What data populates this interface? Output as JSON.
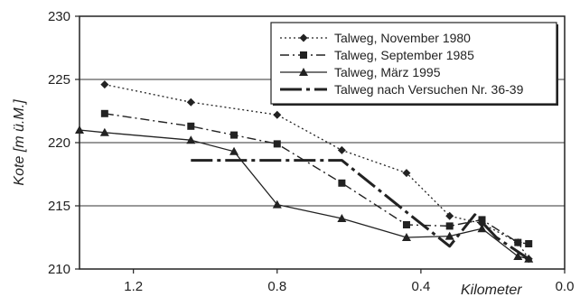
{
  "chart_data": {
    "type": "line",
    "xlabel": "Kilometer",
    "ylabel": "Kote [m ü.M.]",
    "xlim": [
      1.35,
      0.0
    ],
    "ylim": [
      210,
      230
    ],
    "x_ticks": [
      1.2,
      0.8,
      0.4,
      0.0
    ],
    "x_tick_labels": [
      "1.2",
      "0.8",
      "0.4",
      "0.0"
    ],
    "y_ticks": [
      210,
      215,
      220,
      225,
      230
    ],
    "y_tick_labels": [
      "210",
      "215",
      "220",
      "225",
      "230"
    ],
    "grid": "horizontal",
    "legend_position": "top-right",
    "series": [
      {
        "name": "Talweg, November 1980",
        "line_style": "dotted",
        "marker": "diamond",
        "x": [
          1.28,
          1.04,
          0.8,
          0.62,
          0.44,
          0.32,
          0.23,
          0.13,
          0.1
        ],
        "y": [
          224.6,
          223.2,
          222.2,
          219.4,
          217.6,
          214.2,
          213.6,
          212.1,
          210.8
        ]
      },
      {
        "name": "Talweg, September 1985",
        "line_style": "dash-dot",
        "marker": "square",
        "x": [
          1.28,
          1.04,
          0.92,
          0.8,
          0.62,
          0.44,
          0.32,
          0.23,
          0.13,
          0.1
        ],
        "y": [
          222.3,
          221.3,
          220.6,
          219.9,
          216.8,
          213.5,
          213.4,
          213.9,
          212.1,
          212.0
        ]
      },
      {
        "name": "Talweg, März 1995",
        "line_style": "solid",
        "marker": "triangle",
        "x": [
          1.35,
          1.28,
          1.04,
          0.92,
          0.8,
          0.62,
          0.44,
          0.32,
          0.23,
          0.13,
          0.1
        ],
        "y": [
          221.0,
          220.8,
          220.2,
          219.3,
          215.1,
          214.0,
          212.5,
          212.6,
          213.2,
          211.0,
          210.8
        ]
      },
      {
        "name": "Talweg nach Versuchen Nr. 36-39",
        "line_style": "thick dash-dot",
        "marker": "none",
        "x": [
          1.04,
          0.62,
          0.44,
          0.32,
          0.25,
          0.19,
          0.1
        ],
        "y": [
          218.6,
          218.6,
          214.5,
          211.8,
          214.3,
          212.5,
          210.8
        ]
      }
    ]
  }
}
